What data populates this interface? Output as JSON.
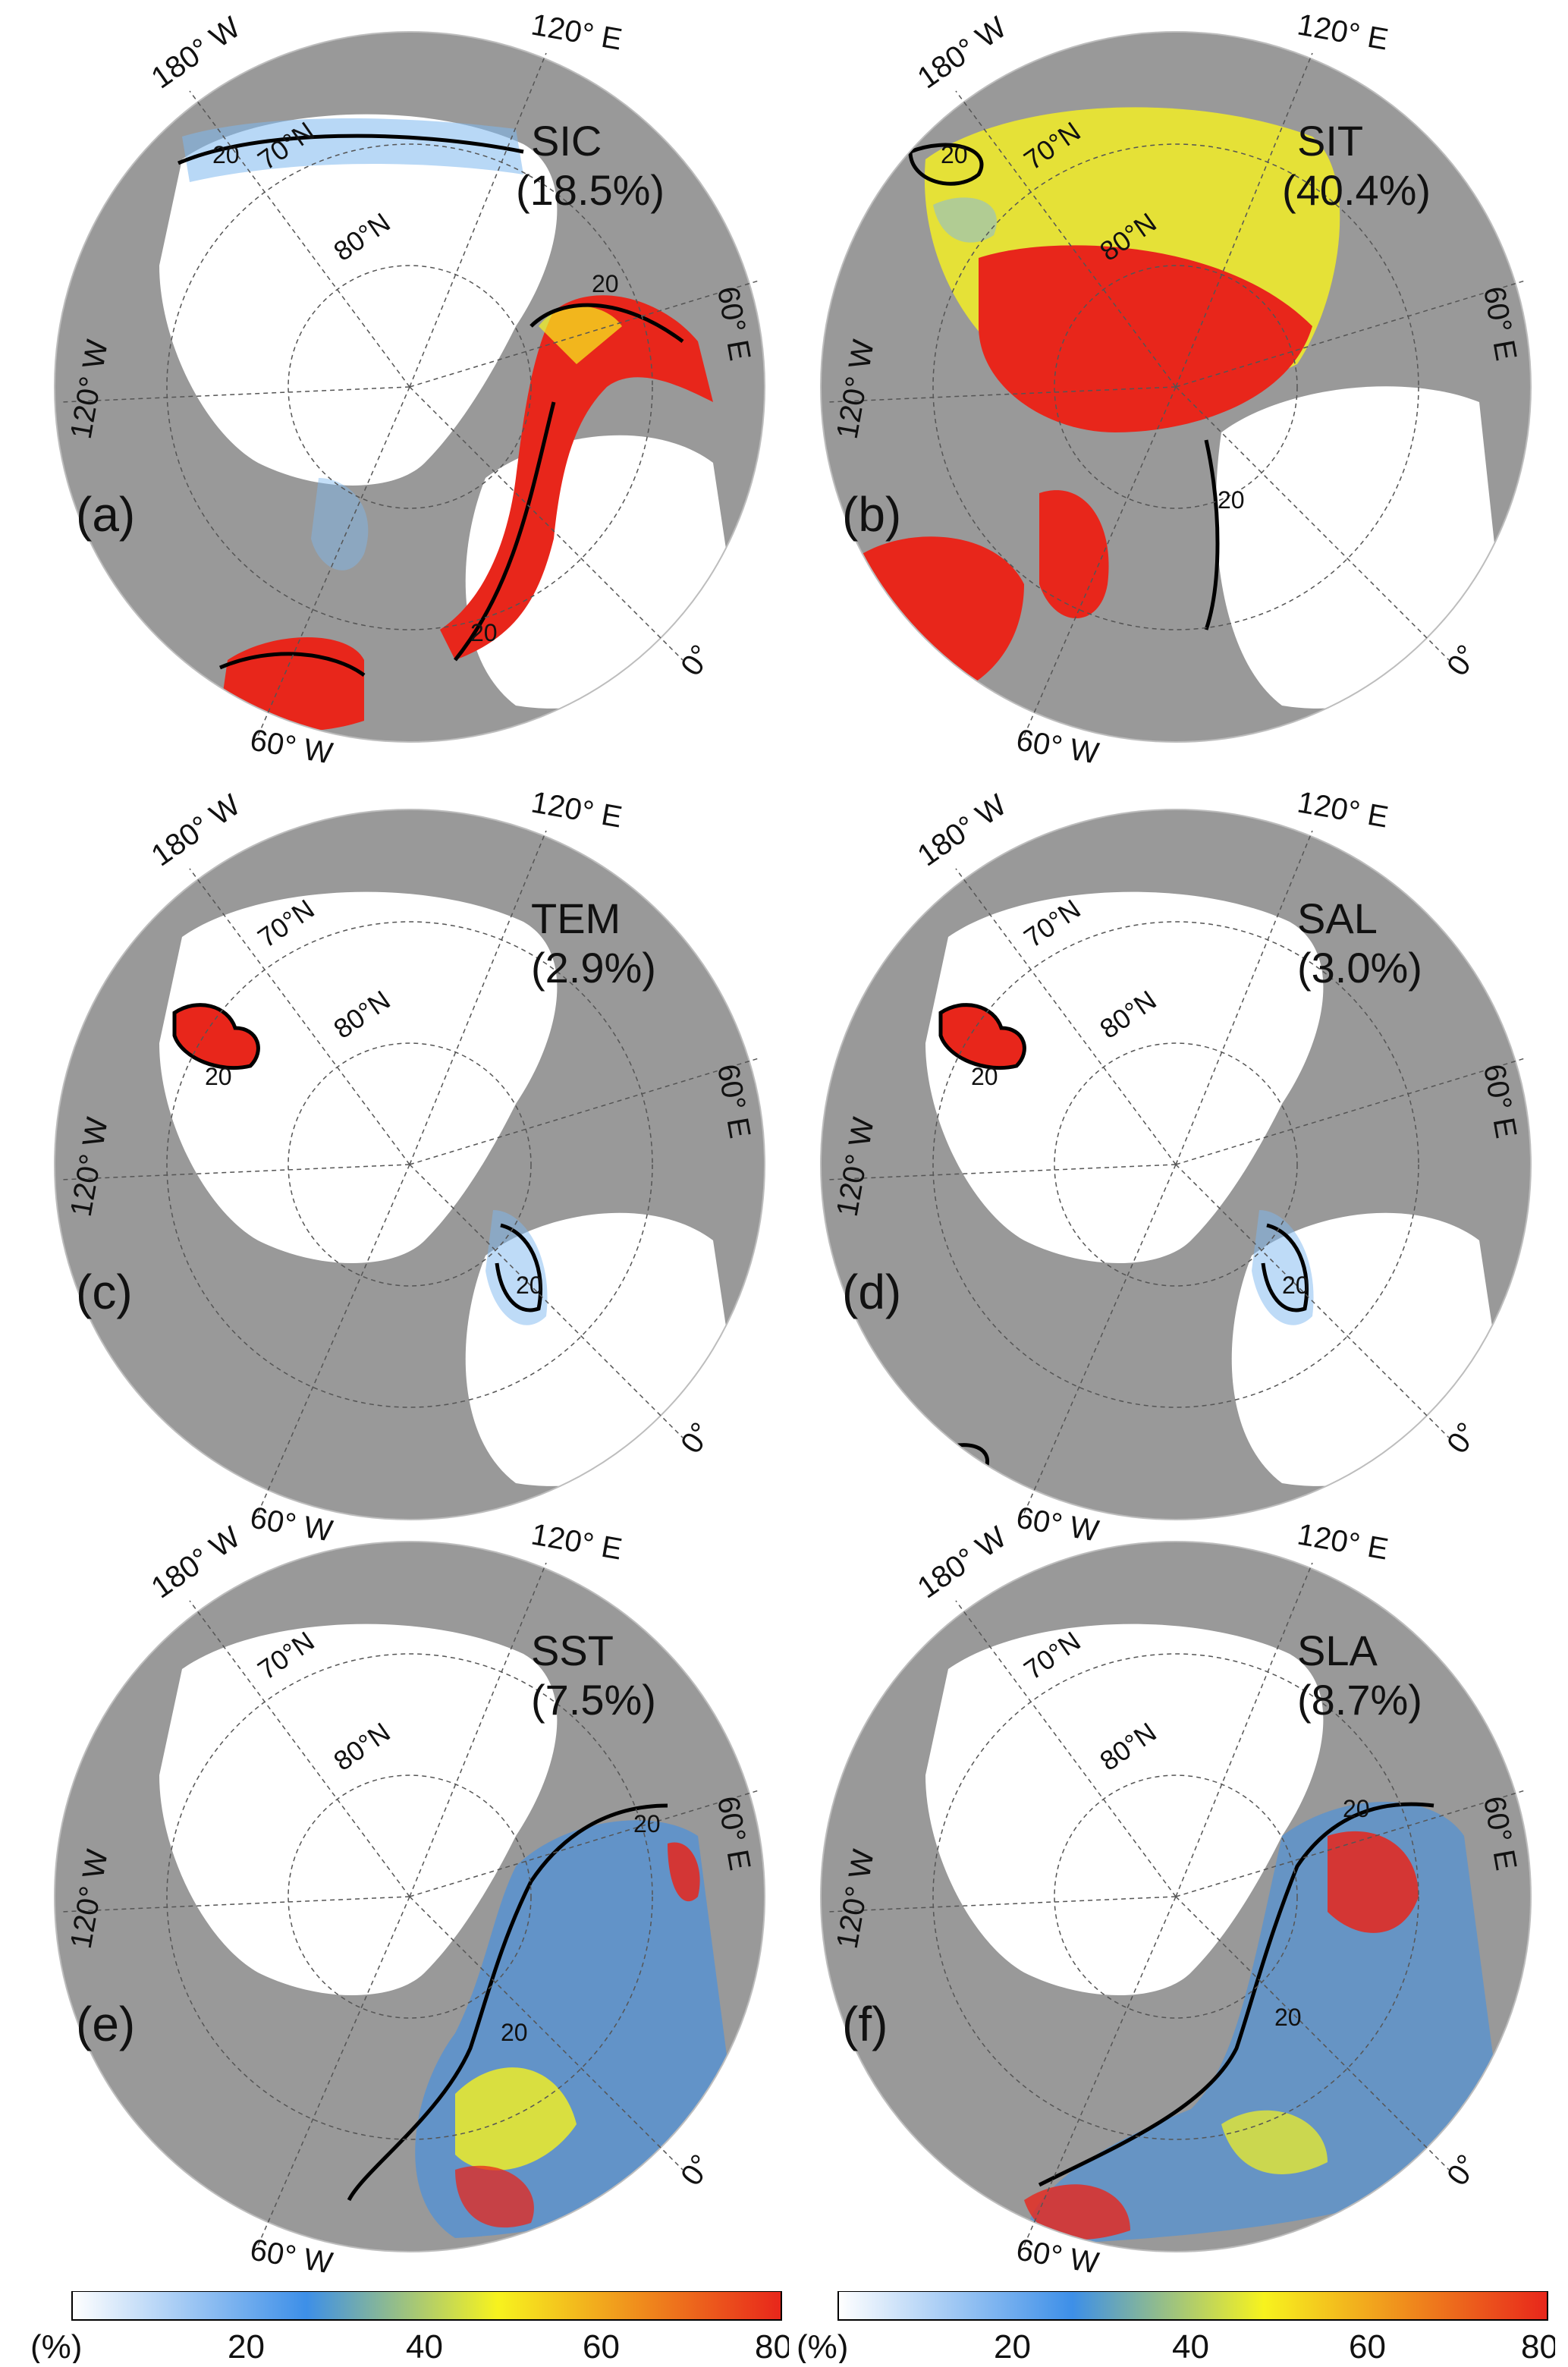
{
  "panels": [
    {
      "letter": "(a)",
      "variable": "SIC",
      "percent": "(18.5%)"
    },
    {
      "letter": "(b)",
      "variable": "SIT",
      "percent": "(40.4%)"
    },
    {
      "letter": "(c)",
      "variable": "TEM",
      "percent": "(2.9%)"
    },
    {
      "letter": "(d)",
      "variable": "SAL",
      "percent": "(3.0%)"
    },
    {
      "letter": "(e)",
      "variable": "SST",
      "percent": "(7.5%)"
    },
    {
      "letter": "(f)",
      "variable": "SLA",
      "percent": "(8.7%)"
    }
  ],
  "map_labels": {
    "lon_180w": "180° W",
    "lon_120e": "120° E",
    "lon_60e": "60° E",
    "lon_120w": "120° W",
    "lon_60w": "60° W",
    "lon_0": "0°",
    "lat_70n": "70°N",
    "lat_80n": "80°N"
  },
  "contour_label": "20",
  "colorbar": {
    "unit": "(%)",
    "ticks": [
      "20",
      "40",
      "60",
      "80"
    ],
    "range": [
      0,
      80
    ],
    "colors": [
      "#ffffff",
      "#3d8fe8",
      "#f7f31e",
      "#e8261b"
    ]
  },
  "colors": {
    "land": "#999999",
    "ocean": "#ffffff",
    "contour": "#000000"
  }
}
